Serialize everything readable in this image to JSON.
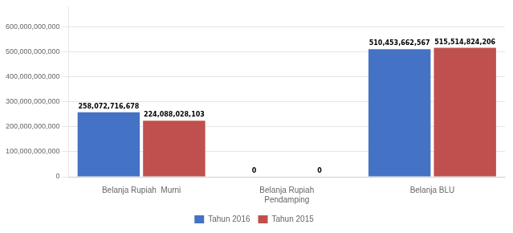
{
  "chart_data": {
    "type": "bar",
    "categories": [
      "Belanja Rupiah  Murni",
      "Belanja Rupiah\nPendamping",
      "Belanja BLU"
    ],
    "series": [
      {
        "name": "Tahun 2016",
        "color": "#4472c4",
        "values": [
          258072716678,
          0,
          510453662567
        ],
        "value_labels": [
          "258,072,716,678",
          "0",
          "510,453,662,567"
        ]
      },
      {
        "name": "Tahun 2015",
        "color": "#c0504d",
        "values": [
          224088028103,
          0,
          515514824206
        ],
        "value_labels": [
          "224,088,028,103",
          "0",
          "515,514,824,206"
        ]
      }
    ],
    "ylim": [
      0,
      680000000000
    ],
    "yticks": [
      0,
      {
        "value": 100000000000,
        "label": "100,000,000,000"
      },
      {
        "value": 200000000000,
        "label": "200,000,000,000"
      },
      {
        "value": 300000000000,
        "label": "300,000,000,000"
      },
      {
        "value": 400000000000,
        "label": "400,000,000,000"
      },
      {
        "value": 500000000000,
        "label": "500,000,000,000"
      },
      {
        "value": 600000000000,
        "label": "600,000,000,000"
      }
    ],
    "grid": true,
    "legend": "bottom",
    "data_labels": true
  }
}
